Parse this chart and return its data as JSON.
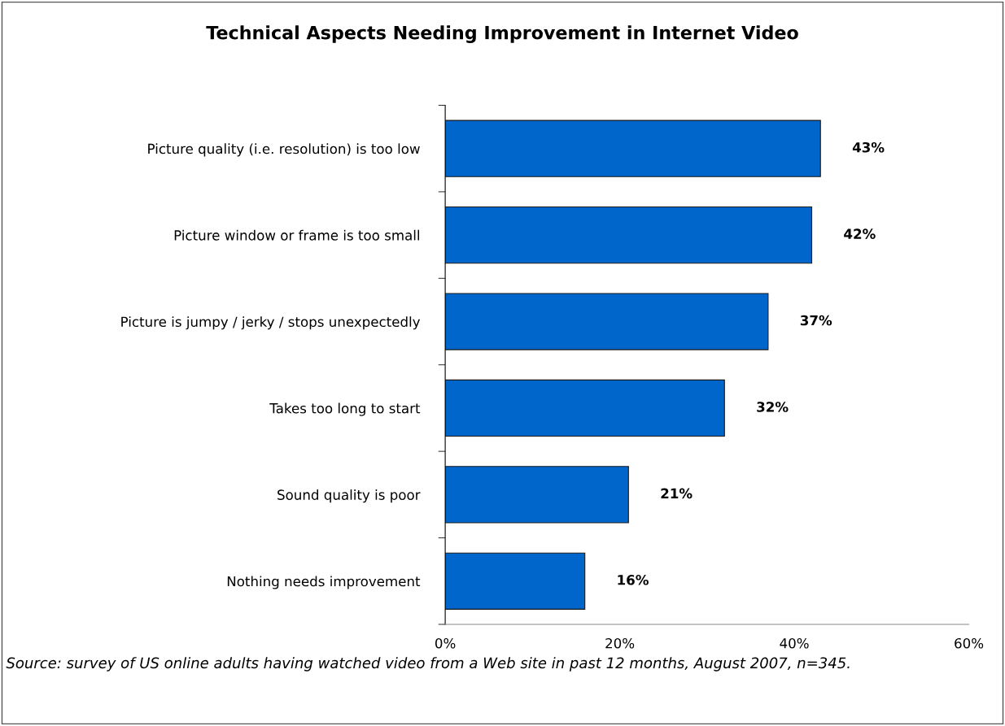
{
  "chart_data": {
    "type": "bar",
    "orientation": "horizontal",
    "title": "Technical Aspects Needing Improvement in Internet Video",
    "categories": [
      "Picture quality (i.e. resolution) is too low",
      "Picture window or frame is too small",
      "Picture is jumpy / jerky / stops unexpectedly",
      "Takes too long to start",
      "Sound quality is poor",
      "Nothing needs improvement"
    ],
    "values": [
      43,
      42,
      37,
      32,
      21,
      16
    ],
    "value_labels": [
      "43%",
      "42%",
      "37%",
      "32%",
      "21%",
      "16%"
    ],
    "color": "#0066cc",
    "xlim": [
      0,
      60
    ],
    "xticks": [
      {
        "value": 0,
        "label": "0%"
      },
      {
        "value": 20,
        "label": "20%"
      },
      {
        "value": 40,
        "label": "40%"
      },
      {
        "value": 60,
        "label": "60%"
      }
    ],
    "grid": false,
    "annotations": [
      "Source: survey of US online adults having watched video from a Web site in past 12 months, August 2007, n=345."
    ]
  }
}
